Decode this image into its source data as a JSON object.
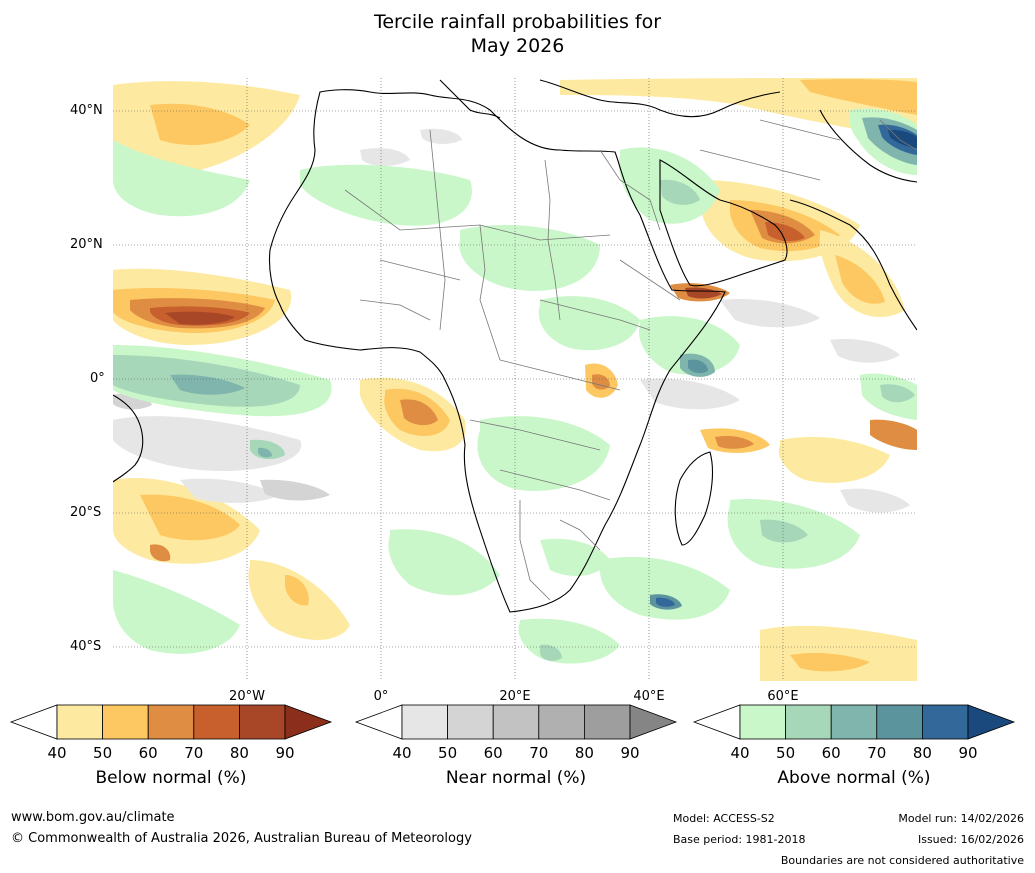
{
  "title_line1": "Tercile rainfall probabilities for",
  "title_line2": "May 2026",
  "lat_labels": [
    "40°N",
    "20°N",
    "0°",
    "20°S",
    "40°S"
  ],
  "lon_labels": [
    "20°W",
    "0°",
    "20°E",
    "40°E",
    "60°E"
  ],
  "colorbars": {
    "below": {
      "title": "Below normal (%)",
      "ticks": [
        "40",
        "50",
        "60",
        "70",
        "80",
        "90"
      ],
      "colors": [
        "#ffffff",
        "#fdeaa0",
        "#fdc762",
        "#df8d43",
        "#c8602d",
        "#a84728",
        "#8c2e1c"
      ]
    },
    "near": {
      "title": "Near normal (%)",
      "ticks": [
        "40",
        "50",
        "60",
        "70",
        "80",
        "90"
      ],
      "colors": [
        "#ffffff",
        "#e6e6e6",
        "#d4d4d4",
        "#c2c2c2",
        "#b0b0b0",
        "#9e9e9e",
        "#858585"
      ]
    },
    "above": {
      "title": "Above normal (%)",
      "ticks": [
        "40",
        "50",
        "60",
        "70",
        "80",
        "90"
      ],
      "colors": [
        "#ffffff",
        "#c9f7c9",
        "#a6d7b8",
        "#7fb5ad",
        "#5c949e",
        "#33689a",
        "#1a4a7d"
      ]
    }
  },
  "footer": {
    "website": "www.bom.gov.au/climate",
    "copyright": "© Commonwealth of Australia 2026, Australian Bureau of Meteorology",
    "model": "Model: ACCESS-S2",
    "base_period": "Base period: 1981-2018",
    "model_run": "Model run: 14/02/2026",
    "issued": "Issued: 16/02/2026",
    "disclaimer": "Boundaries are not considered authoritative"
  }
}
